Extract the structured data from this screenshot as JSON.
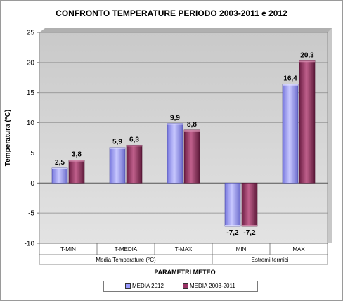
{
  "chart_data": {
    "type": "bar",
    "title": "CONFRONTO TEMPERATURE PERIODO 2003-2011 e 2012",
    "ylabel": "Temperatura (°C)",
    "xlabel": "PARAMETRI METEO",
    "ylim": [
      -10,
      25
    ],
    "yticks": [
      -10,
      -5,
      0,
      5,
      10,
      15,
      20,
      25
    ],
    "categories": [
      "T-MIN",
      "T-MEDIA",
      "T-MAX",
      "MIN",
      "MAX"
    ],
    "groups": [
      {
        "label": "Media Temperature  (°C)",
        "categories": [
          "T-MIN",
          "T-MEDIA",
          "T-MAX"
        ]
      },
      {
        "label": "Estremi termici",
        "categories": [
          "MIN",
          "MAX"
        ]
      }
    ],
    "series": [
      {
        "name": "MEDIA 2012",
        "values": [
          2.5,
          5.9,
          9.9,
          -7.2,
          16.4
        ],
        "labels": [
          "2,5",
          "5,9",
          "9,9",
          "-7,2",
          "16,4"
        ],
        "color": "#9999ff"
      },
      {
        "name": "MEDIA 2003-2011",
        "values": [
          3.8,
          6.3,
          8.8,
          -7.2,
          20.3
        ],
        "labels": [
          "3,8",
          "6,3",
          "8,8",
          "-7,2",
          "20,3"
        ],
        "color": "#993366"
      }
    ],
    "grid": true,
    "legend": "bottom"
  }
}
